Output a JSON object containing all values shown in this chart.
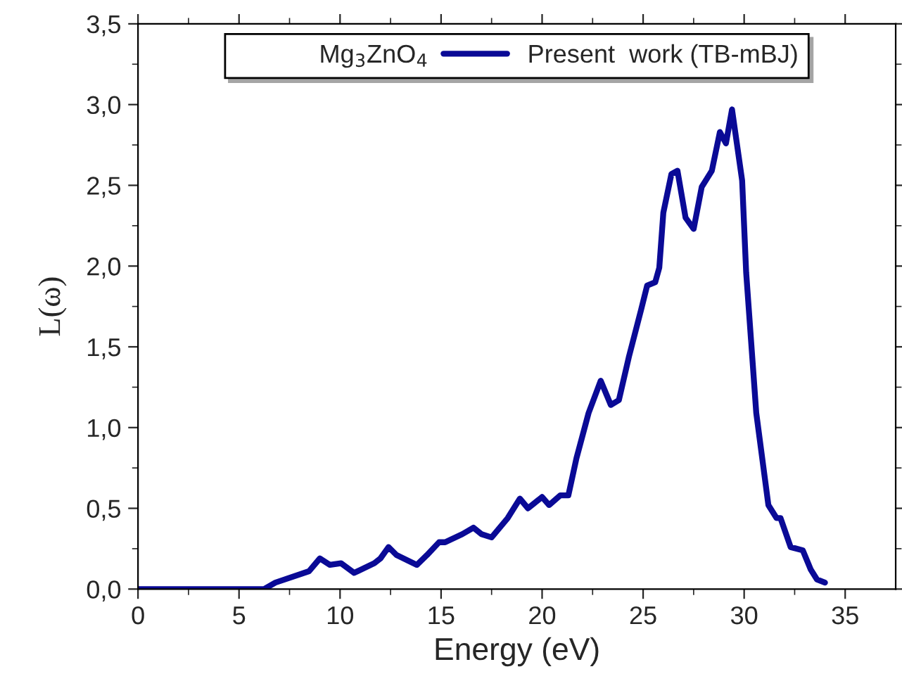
{
  "chart_data": {
    "type": "line",
    "xlabel": "Energy (eV)",
    "ylabel": "L(ω)",
    "legend_title": "Mg$_{3}$ZnO$_{4}$",
    "series": [
      {
        "name": "Present  work (TB-mBJ)",
        "color": "#0a0a96",
        "x": [
          0,
          6.24,
          6.8,
          8.46,
          9.0,
          9.5,
          10.05,
          10.7,
          11.7,
          12.0,
          12.4,
          12.8,
          13.8,
          14.3,
          14.9,
          15.2,
          16.05,
          16.6,
          17.0,
          17.5,
          18.3,
          18.9,
          19.3,
          20.0,
          20.35,
          20.9,
          21.3,
          21.7,
          22.3,
          22.9,
          23.4,
          23.8,
          24.3,
          24.9,
          25.2,
          25.6,
          25.8,
          26.0,
          26.4,
          26.7,
          27.1,
          27.5,
          27.9,
          28.4,
          28.8,
          29.1,
          29.4,
          29.9,
          30.1,
          30.6,
          31.2,
          31.6,
          31.8,
          32.3,
          32.9,
          33.3,
          33.6,
          34.0
        ],
        "values": [
          0,
          0,
          0.04,
          0.11,
          0.19,
          0.15,
          0.16,
          0.1,
          0.16,
          0.19,
          0.26,
          0.21,
          0.15,
          0.21,
          0.29,
          0.29,
          0.34,
          0.38,
          0.34,
          0.32,
          0.44,
          0.56,
          0.5,
          0.57,
          0.52,
          0.58,
          0.58,
          0.81,
          1.09,
          1.29,
          1.14,
          1.17,
          1.44,
          1.73,
          1.88,
          1.9,
          1.99,
          2.33,
          2.57,
          2.59,
          2.3,
          2.23,
          2.49,
          2.59,
          2.83,
          2.76,
          2.97,
          2.53,
          1.96,
          1.09,
          0.52,
          0.44,
          0.44,
          0.26,
          0.24,
          0.12,
          0.06,
          0.04
        ]
      }
    ],
    "xlim": [
      0,
      37.5
    ],
    "ylim": [
      0,
      3.5
    ],
    "xticks": [
      0,
      5,
      10,
      15,
      20,
      25,
      30,
      35,
      {
        "value": 2.5,
        "label": null
      },
      {
        "value": 7.5,
        "label": null
      },
      {
        "value": 12.5,
        "label": null
      },
      {
        "value": 17.5,
        "label": null
      },
      {
        "value": 22.5,
        "label": null
      },
      {
        "value": 27.5,
        "label": null
      },
      {
        "value": 32.5,
        "label": null
      }
    ],
    "yticks": [
      {
        "value": 0,
        "label": "0,0"
      },
      {
        "value": 0.5,
        "label": "0,5"
      },
      {
        "value": 1,
        "label": "1,0"
      },
      {
        "value": 1.5,
        "label": "1,5"
      },
      {
        "value": 2,
        "label": "2,0"
      },
      {
        "value": 2.5,
        "label": "2,5"
      },
      {
        "value": 3,
        "label": "3,0"
      },
      {
        "value": 3.5,
        "label": "3,5"
      },
      {
        "value": 0.25,
        "label": null
      },
      {
        "value": 0.75,
        "label": null
      },
      {
        "value": 1.25,
        "label": null
      },
      {
        "value": 1.75,
        "label": null
      },
      {
        "value": 2.25,
        "label": null
      },
      {
        "value": 2.75,
        "label": null
      },
      {
        "value": 3.25,
        "label": null
      }
    ],
    "legend": "top",
    "grid": false,
    "marker": "none",
    "line_style": "solid"
  }
}
